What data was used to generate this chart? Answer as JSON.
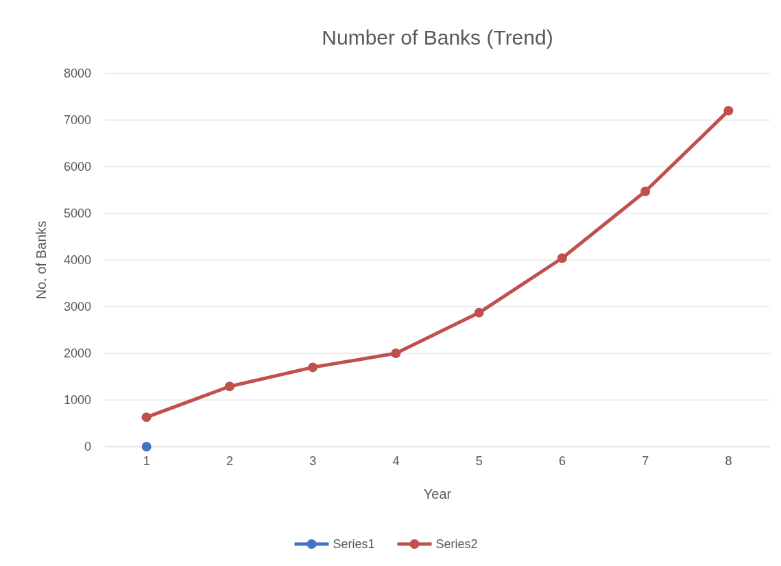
{
  "chart_data": {
    "type": "line",
    "title": "Number of Banks (Trend)",
    "xlabel": "Year",
    "ylabel": "No. of Banks",
    "categories": [
      "1",
      "2",
      "3",
      "4",
      "5",
      "6",
      "7",
      "8"
    ],
    "series": [
      {
        "name": "Series1",
        "color": "#4472c4",
        "values": [
          0,
          null,
          null,
          null,
          null,
          null,
          null,
          null
        ]
      },
      {
        "name": "Series2",
        "color": "#c0504d",
        "values": [
          630,
          1290,
          1700,
          2000,
          2870,
          4040,
          5470,
          7200
        ]
      }
    ],
    "ylim": [
      0,
      8000
    ],
    "yticks": [
      0,
      1000,
      2000,
      3000,
      4000,
      5000,
      6000,
      7000,
      8000
    ],
    "grid": "y",
    "legend": "bottom",
    "marker": "circle",
    "line_style": "solid"
  }
}
